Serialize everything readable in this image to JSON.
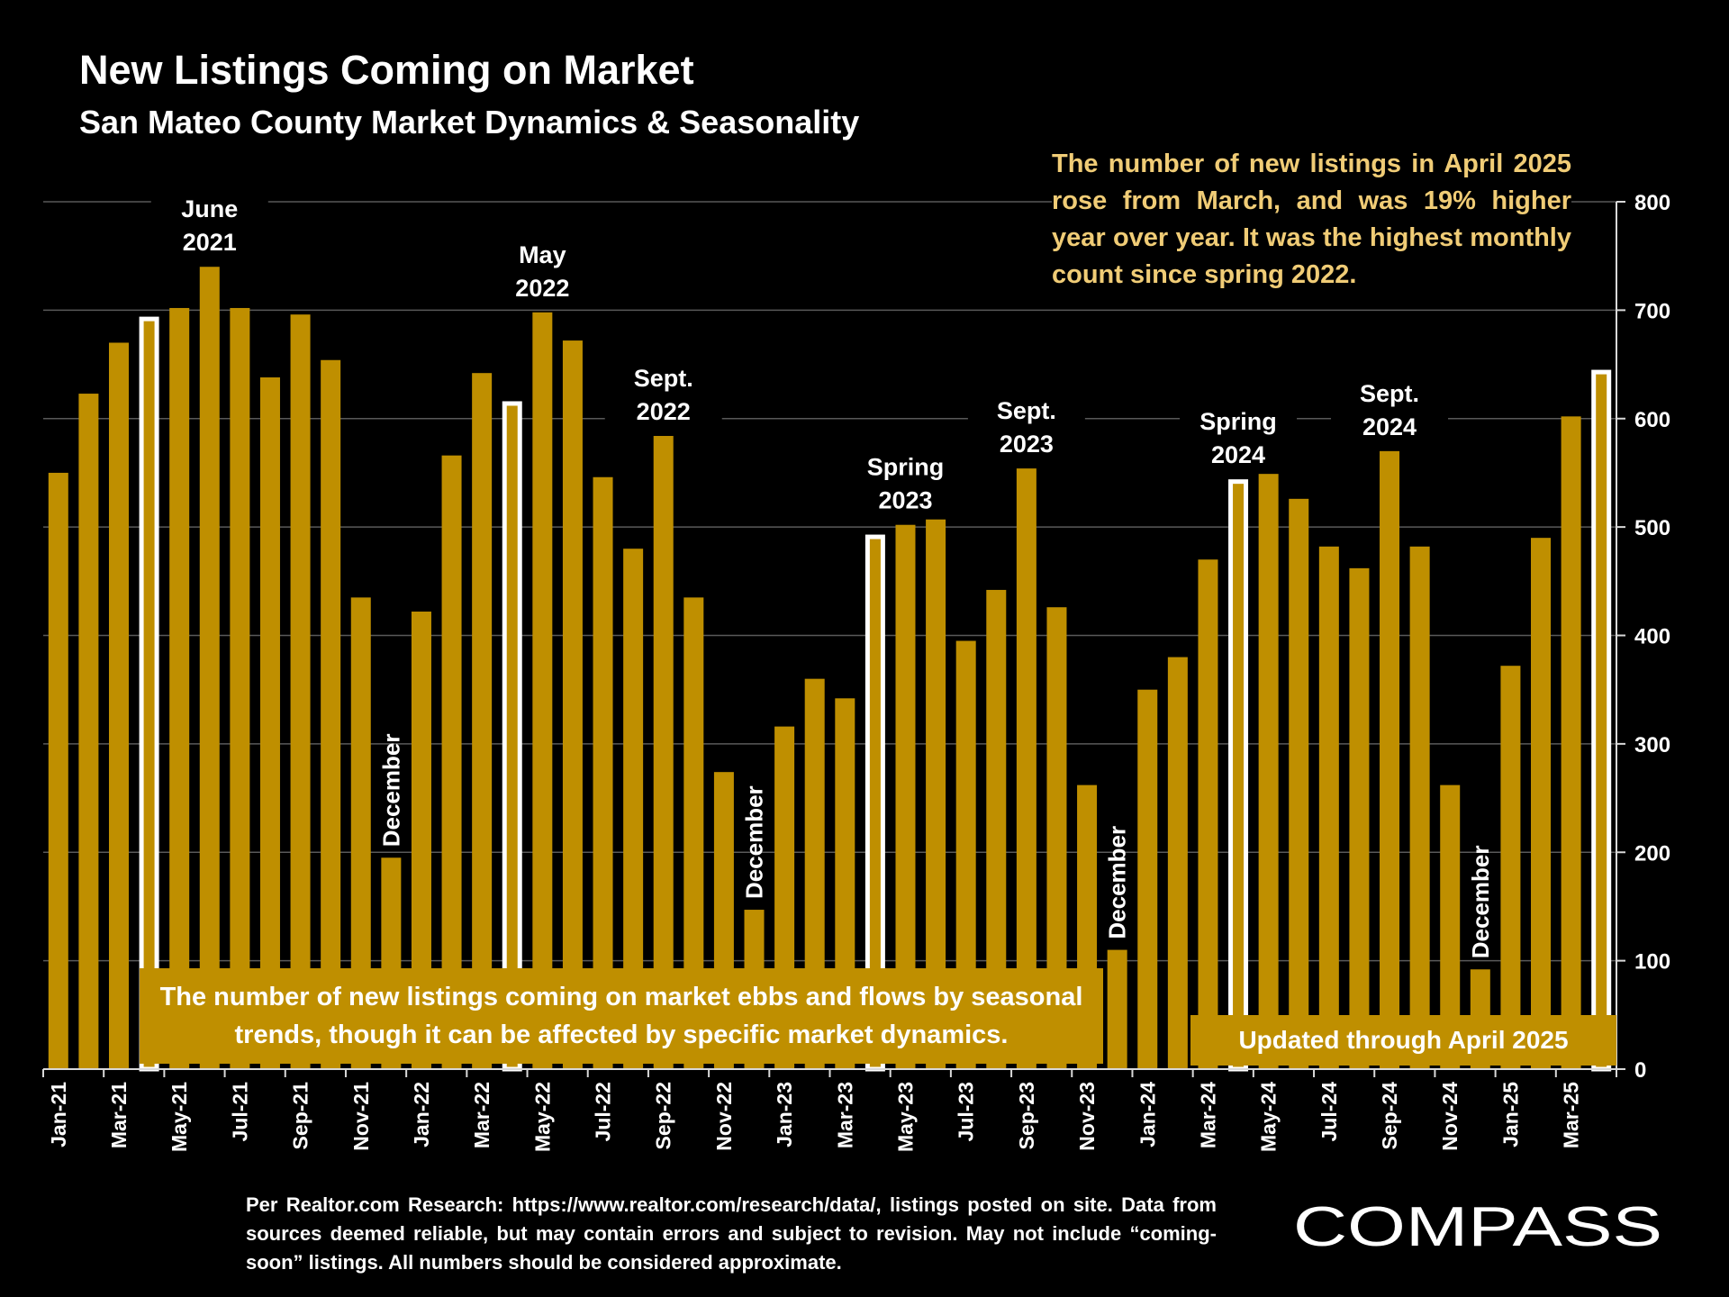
{
  "title": "New Listings Coming on Market",
  "subtitle": "San Mateo County Market Dynamics & Seasonality",
  "callout": "The number of new listings in April 2025 rose from March, and was 19% higher year over year. It was the highest monthly count since spring 2022.",
  "note_box": "The number of new listings coming on market ebbs and flows by seasonal trends, though it can be affected by specific market dynamics.",
  "updated_box": "Updated through April 2025",
  "source": "Per Realtor.com Research: https://www.realtor.com/research/data/, listings posted on site. Data from sources deemed reliable, but may contain errors and subject to revision. May not include “coming-soon” listings. All numbers should be considered approximate.",
  "logo_text": "COMPASS",
  "colors": {
    "bar": "#bf8f00",
    "highlight_outline": "#ffffff",
    "callout_text": "#f0cc76",
    "background": "#000000"
  },
  "chart_data": {
    "type": "bar",
    "title": "New Listings Coming on Market",
    "ylim": [
      0,
      800
    ],
    "y_ticks": [
      0,
      100,
      200,
      300,
      400,
      500,
      600,
      700,
      800
    ],
    "y_axis_position": "right",
    "grid": true,
    "categories": [
      "Jan-21",
      "Feb-21",
      "Mar-21",
      "Apr-21",
      "May-21",
      "Jun-21",
      "Jul-21",
      "Aug-21",
      "Sep-21",
      "Oct-21",
      "Nov-21",
      "Dec-21",
      "Jan-22",
      "Feb-22",
      "Mar-22",
      "Apr-22",
      "May-22",
      "Jun-22",
      "Jul-22",
      "Aug-22",
      "Sep-22",
      "Oct-22",
      "Nov-22",
      "Dec-22",
      "Jan-23",
      "Feb-23",
      "Mar-23",
      "Apr-23",
      "May-23",
      "Jun-23",
      "Jul-23",
      "Aug-23",
      "Sep-23",
      "Oct-23",
      "Nov-23",
      "Dec-23",
      "Jan-24",
      "Feb-24",
      "Mar-24",
      "Apr-24",
      "May-24",
      "Jun-24",
      "Jul-24",
      "Aug-24",
      "Sep-24",
      "Oct-24",
      "Nov-24",
      "Dec-24",
      "Jan-25",
      "Feb-25",
      "Mar-25",
      "Apr-25"
    ],
    "values": [
      550,
      623,
      670,
      694,
      702,
      740,
      702,
      638,
      696,
      654,
      435,
      195,
      422,
      566,
      642,
      616,
      698,
      672,
      546,
      480,
      584,
      435,
      274,
      147,
      316,
      360,
      342,
      493,
      502,
      512,
      395,
      442,
      554,
      426,
      262,
      110,
      350,
      380,
      470,
      544,
      560,
      526,
      482,
      462,
      570,
      482,
      262,
      92,
      372,
      490,
      602,
      645
    ],
    "x_tick_labels": [
      "Jan-21",
      "Mar-21",
      "May-21",
      "Jul-21",
      "Sep-21",
      "Nov-21",
      "Jan-22",
      "Mar-22",
      "May-22",
      "Jul-22",
      "Sep-22",
      "Nov-22",
      "Jan-23",
      "Mar-23",
      "May-23",
      "Jul-23",
      "Sep-23",
      "Nov-23",
      "Jan-24",
      "Mar-24",
      "May-24",
      "Jul-24",
      "Sep-24",
      "Nov-24",
      "Jan-25",
      "Mar-25"
    ],
    "highlighted_categories": [
      "Apr-21",
      "Apr-22",
      "Apr-23",
      "Apr-24",
      "Apr-25"
    ],
    "annotations": [
      {
        "category": "Jun-21",
        "lines": [
          "June",
          "2021"
        ],
        "orientation": "horizontal"
      },
      {
        "category": "May-22",
        "lines": [
          "May",
          "2022"
        ],
        "orientation": "horizontal"
      },
      {
        "category": "Sep-22",
        "lines": [
          "Sept.",
          "2022"
        ],
        "orientation": "horizontal"
      },
      {
        "category": "May-23",
        "lines": [
          "Spring",
          "2023"
        ],
        "orientation": "horizontal"
      },
      {
        "category": "Sep-23",
        "lines": [
          "Sept.",
          "2023"
        ],
        "orientation": "horizontal"
      },
      {
        "category": "Apr-24",
        "lines": [
          "Spring",
          "2024"
        ],
        "orientation": "horizontal"
      },
      {
        "category": "Sep-24",
        "lines": [
          "Sept.",
          "2024"
        ],
        "orientation": "horizontal"
      },
      {
        "category": "Dec-21",
        "lines": [
          "December"
        ],
        "orientation": "vertical"
      },
      {
        "category": "Dec-22",
        "lines": [
          "December"
        ],
        "orientation": "vertical"
      },
      {
        "category": "Dec-23",
        "lines": [
          "December"
        ],
        "orientation": "vertical"
      },
      {
        "category": "Dec-24",
        "lines": [
          "December"
        ],
        "orientation": "vertical"
      }
    ]
  }
}
